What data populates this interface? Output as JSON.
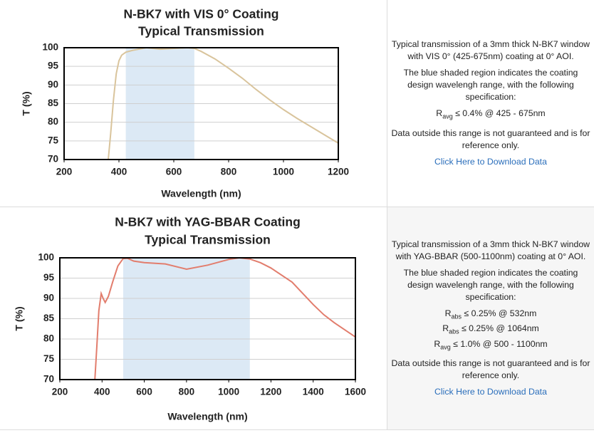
{
  "chart_data": [
    {
      "type": "line",
      "title": [
        "N-BK7 with VIS 0° Coating",
        "Typical Transmission"
      ],
      "x_label": "Wavelength (nm)",
      "y_label": "T (%)",
      "xlim": [
        200,
        1200
      ],
      "ylim": [
        70,
        100
      ],
      "xticks": [
        200,
        400,
        600,
        800,
        1000,
        1200
      ],
      "yticks": [
        70,
        75,
        80,
        85,
        90,
        95,
        100
      ],
      "grid": true,
      "shade": [
        425,
        675
      ],
      "shade_color": "#dce9f5",
      "series": [
        {
          "color": "#d9c49c",
          "x": [
            361,
            370,
            380,
            390,
            400,
            410,
            425,
            450,
            500,
            550,
            600,
            650,
            675,
            700,
            750,
            800,
            850,
            900,
            950,
            1000,
            1050,
            1100,
            1150,
            1200
          ],
          "values": [
            70,
            77,
            86,
            93,
            96.5,
            98,
            98.8,
            99.3,
            100,
            99.6,
            99.8,
            100,
            99.8,
            99,
            97,
            94.5,
            91.8,
            88.8,
            86,
            83.4,
            81,
            78.8,
            76.6,
            74.4
          ]
        }
      ]
    },
    {
      "type": "line",
      "title": [
        "N-BK7 with YAG-BBAR Coating",
        "Typical Transmission"
      ],
      "x_label": "Wavelength (nm)",
      "y_label": "T (%)",
      "xlim": [
        200,
        1600
      ],
      "ylim": [
        70,
        100
      ],
      "xticks": [
        200,
        400,
        600,
        800,
        1000,
        1200,
        1400,
        1600
      ],
      "yticks": [
        70,
        75,
        80,
        85,
        90,
        95,
        100
      ],
      "grid": true,
      "shade": [
        500,
        1100
      ],
      "shade_color": "#dce9f5",
      "series": [
        {
          "color": "#e27d6d",
          "x": [
            366,
            375,
            385,
            396,
            405,
            415,
            430,
            450,
            475,
            500,
            520,
            550,
            600,
            700,
            800,
            900,
            1000,
            1050,
            1100,
            1150,
            1200,
            1300,
            1400,
            1450,
            1500,
            1600
          ],
          "values": [
            70,
            78,
            87,
            91.2,
            90,
            89,
            90.5,
            94,
            98,
            99.8,
            99.9,
            99.2,
            98.8,
            98.5,
            97.2,
            98.2,
            99.6,
            100,
            99.7,
            98.8,
            97.5,
            94,
            88.5,
            86,
            84,
            80.5
          ]
        }
      ]
    }
  ],
  "panels": [
    {
      "intro": "Typical transmission of a 3mm thick N-BK7 window with VIS 0° (425-675nm) coating at 0° AOI.",
      "region": "The blue shaded region indicates the coating design wavelengh range, with the following specification:",
      "specs": [
        {
          "symbol": "R",
          "sub": "avg",
          "text": " ≤ 0.4% @ 425 - 675nm"
        }
      ],
      "note": "Data outside this range is not guaranteed and is for reference only.",
      "link": "Click Here to Download Data"
    },
    {
      "intro": "Typical transmission of a 3mm thick N-BK7 window with YAG-BBAR (500-1100nm) coating at 0° AOI.",
      "region": "The blue shaded region indicates the coating design wavelengh range, with the following specification:",
      "specs": [
        {
          "symbol": "R",
          "sub": "abs",
          "text": " ≤ 0.25% @ 532nm"
        },
        {
          "symbol": "R",
          "sub": "abs",
          "text": " ≤ 0.25% @ 1064nm"
        },
        {
          "symbol": "R",
          "sub": "avg",
          "text": " ≤ 1.0% @ 500 - 1100nm"
        }
      ],
      "note": "Data outside this range is not guaranteed and is for reference only.",
      "link": "Click Here to Download Data"
    }
  ]
}
